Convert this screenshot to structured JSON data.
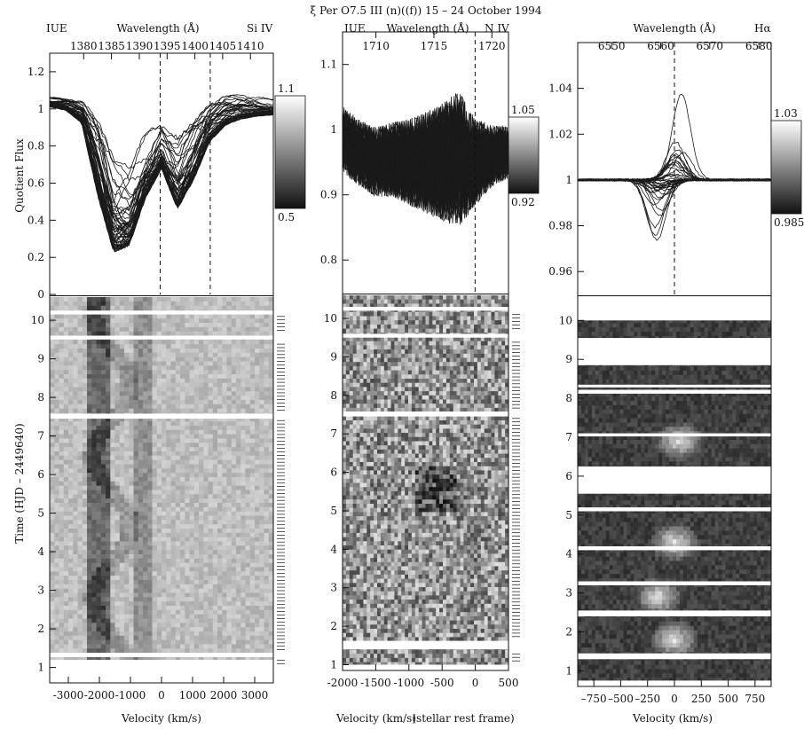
{
  "figure": {
    "title": "ξ Per  O7.5 III (n)((f))   15 – 24 October 1994",
    "ylabel_flux": "Quotient Flux",
    "ylabel_time": "Time  (HJD – 2449640)"
  },
  "chart_data": [
    {
      "type": "line",
      "panel": "Si IV",
      "instrument": "IUE",
      "ion": "Si IV",
      "top_axis_label": "Wavelength (Å)",
      "wavelength_ticks": [
        1380,
        1385,
        1390,
        1395,
        1400,
        1405,
        1410
      ],
      "xlim_velocity": [
        -3600,
        3600
      ],
      "velocity_ticks": [
        -3000,
        -2000,
        -1000,
        0,
        1000,
        2000,
        3000
      ],
      "ylim": [
        0.0,
        1.3
      ],
      "yticks": [
        "0",
        "0.2",
        "0.4",
        "0.6",
        "0.8",
        "1",
        "1.2"
      ],
      "xlabel": "Velocity (km/s)",
      "ylabel": "Quotient Flux",
      "rest_wavelengths_dashed": [
        1393.76,
        1402.77
      ],
      "trough_minima": [
        {
          "velocity": -2100,
          "flux": 0.13
        },
        {
          "velocity": -600,
          "flux": 0.38
        }
      ],
      "envelope_min": [
        1.0,
        0.98,
        0.9,
        0.45,
        0.13,
        0.18,
        0.45,
        0.62,
        0.38,
        0.55,
        0.78,
        0.88,
        0.92,
        0.94,
        0.95
      ],
      "envelope_max": [
        1.07,
        1.06,
        1.05,
        0.98,
        0.75,
        0.72,
        0.9,
        0.98,
        0.88,
        0.96,
        1.04,
        1.08,
        1.08,
        1.07,
        1.06
      ],
      "colorbar": {
        "min": 0.5,
        "max": 1.1,
        "min_label": "0.5",
        "max_label": "1.1"
      }
    },
    {
      "type": "line",
      "panel": "N IV",
      "instrument": "IUE",
      "ion": "N IV",
      "top_axis_label": "Wavelength (Å)",
      "wavelength_ticks": [
        1710,
        1715,
        1720
      ],
      "xlim_velocity": [
        -2000,
        500
      ],
      "velocity_ticks": [
        -2000,
        -1500,
        -1000,
        -500,
        0,
        500
      ],
      "ylim": [
        0.75,
        1.15
      ],
      "yticks": [
        "0.8",
        "0.9",
        "1",
        "1.1"
      ],
      "xlabel": "Velocity (km/s)",
      "xlabel_extra": "(stellar rest frame)",
      "rest_wavelengths_dashed": [
        1718.55
      ],
      "trough_minima": [
        {
          "velocity": -600,
          "flux": 0.78
        }
      ],
      "envelope_min": [
        0.9,
        0.88,
        0.86,
        0.86,
        0.84,
        0.82,
        0.8,
        0.78,
        0.84,
        0.88,
        0.9
      ],
      "envelope_max": [
        1.07,
        1.05,
        1.04,
        1.05,
        1.06,
        1.08,
        1.1,
        1.13,
        1.06,
        1.04,
        1.03
      ],
      "colorbar": {
        "min": 0.92,
        "max": 1.05,
        "min_label": "0.92",
        "max_label": "1.05"
      }
    },
    {
      "type": "line",
      "panel": "H-alpha",
      "ion": "Hα",
      "top_axis_label": "Wavelength (Å)",
      "wavelength_ticks": [
        6550,
        6560,
        6570,
        6580
      ],
      "xlim_velocity": [
        -900,
        900
      ],
      "velocity_ticks": [
        -750,
        -500,
        -250,
        0,
        250,
        500,
        750
      ],
      "velocity_tick_labels": [
        "–750",
        "–500",
        "–250",
        "0",
        "250",
        "500",
        "750"
      ],
      "ylim": [
        0.95,
        1.06
      ],
      "yticks": [
        "0.96",
        "0.98",
        "1",
        "1.02",
        "1.04"
      ],
      "xlabel": "Velocity (km/s)",
      "rest_wavelengths_dashed": [
        6562.8
      ],
      "peak_max": {
        "velocity": -200,
        "flux": 1.05
      },
      "peak_min": {
        "velocity": 100,
        "flux": 0.962
      },
      "colorbar": {
        "min": 0.985,
        "max": 1.03,
        "min_label": "0.985",
        "max_label": "1.03"
      }
    },
    {
      "type": "heatmap",
      "panel": "dynamic spectra",
      "ylabel": "Time  (HJD – 2449640)",
      "ylim": [
        0.6,
        10.6
      ],
      "yticks": [
        "1",
        "2",
        "3",
        "4",
        "5",
        "6",
        "7",
        "8",
        "9",
        "10"
      ],
      "gaps_si_iv": [
        [
          10.15,
          10.25
        ],
        [
          9.5,
          9.6
        ],
        [
          7.45,
          7.58
        ],
        [
          1.27,
          1.38
        ],
        [
          0.6,
          1.05
        ]
      ],
      "gaps_n_iv": [
        [
          10.2,
          10.3
        ],
        [
          9.5,
          9.6
        ],
        [
          7.45,
          7.58
        ],
        [
          1.4,
          1.62
        ],
        [
          0.6,
          1.0
        ]
      ],
      "gaps_halpha": [
        [
          10.0,
          10.6
        ],
        [
          8.85,
          9.55
        ],
        [
          8.3,
          8.35
        ],
        [
          8.12,
          8.22
        ],
        [
          7.02,
          7.1
        ],
        [
          6.25,
          5.55
        ],
        [
          5.1,
          5.2
        ],
        [
          4.1,
          4.2
        ],
        [
          3.2,
          3.3
        ],
        [
          2.4,
          2.55
        ],
        [
          1.3,
          1.45
        ],
        [
          0.6,
          0.75
        ]
      ],
      "bright_features_halpha": [
        {
          "time": 6.9,
          "velocity": 50
        },
        {
          "time": 2.9,
          "velocity": -150
        },
        {
          "time": 4.3,
          "velocity": 0
        },
        {
          "time": 1.8,
          "velocity": 0
        }
      ],
      "dark_features_si_iv": [
        {
          "velocity": -2100,
          "from_time": 1.4,
          "to_time": 10.3
        }
      ]
    }
  ]
}
